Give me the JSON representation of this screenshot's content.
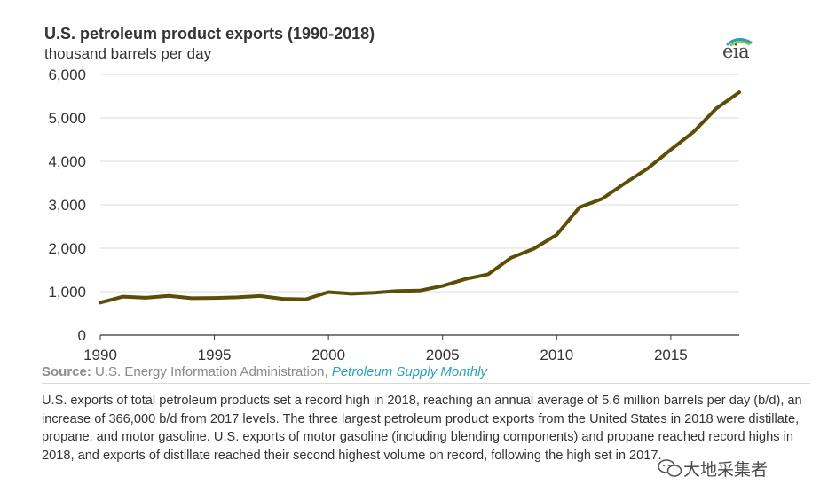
{
  "chart_data": {
    "type": "line",
    "title": "U.S. petroleum product exports (1990-2018)",
    "subtitle": "thousand barrels per day",
    "xlabel": "",
    "ylabel": "",
    "x": [
      1990,
      1991,
      1992,
      1993,
      1994,
      1995,
      1996,
      1997,
      1998,
      1999,
      2000,
      2001,
      2002,
      2003,
      2004,
      2005,
      2006,
      2007,
      2008,
      2009,
      2010,
      2011,
      2012,
      2013,
      2014,
      2015,
      2016,
      2017,
      2018
    ],
    "series": [
      {
        "values": [
          750,
          885,
          860,
          905,
          850,
          855,
          870,
          900,
          835,
          825,
          990,
          950,
          975,
          1015,
          1025,
          1130,
          1290,
          1400,
          1780,
          1990,
          2310,
          2940,
          3140,
          3500,
          3840,
          4270,
          4680,
          5220,
          5590
        ]
      }
    ],
    "xlim": [
      1990,
      2018
    ],
    "ylim": [
      0,
      6000
    ],
    "x_ticks": [
      1990,
      1995,
      2000,
      2005,
      2010,
      2015
    ],
    "x_tick_labels": [
      "1990",
      "1995",
      "2000",
      "2005",
      "2010",
      "2015"
    ],
    "y_ticks": [
      0,
      1000,
      2000,
      3000,
      4000,
      5000,
      6000
    ],
    "y_tick_labels": [
      "0",
      "1,000",
      "2,000",
      "3,000",
      "4,000",
      "5,000",
      "6,000"
    ],
    "grid": "horizontal",
    "legend": "none",
    "line_color": "#5c4e06",
    "grid_color": "#dcdcdc"
  },
  "logo": {
    "text": "eia",
    "arc_colors": [
      "#2b9fb8",
      "#8dc63f"
    ]
  },
  "source": {
    "label": "Source:",
    "text": "U.S. Energy Information Administration, ",
    "link": "Petroleum Supply Monthly"
  },
  "caption": "U.S. exports of total petroleum products set a record high in 2018, reaching an annual average of 5.6 million barrels per day (b/d), an increase of 366,000 b/d from 2017 levels. The three largest petroleum product exports from the United States in 2018 were distillate, propane, and motor gasoline. U.S. exports of motor gasoline (including blending components) and propane reached record highs in 2018, and exports of distillate reached their second highest volume on record, following the high set in 2017.",
  "watermark": {
    "text": "大地采集者",
    "icon": "wechat-icon"
  }
}
